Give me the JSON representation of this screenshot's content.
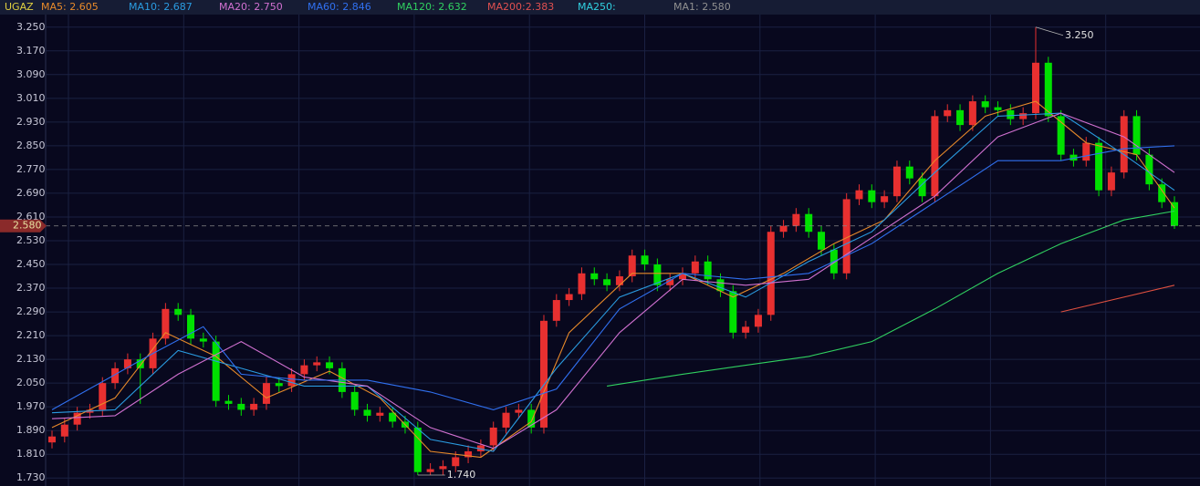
{
  "chart_data": {
    "type": "candlestick",
    "symbol": "UGAZ",
    "up_color": "#e83030",
    "down_color": "#00e000",
    "indicator_labels": [
      {
        "text": "MA5: 2.605",
        "color": "#e88a2a"
      },
      {
        "text": "MA10: 2.687",
        "color": "#2a9be0"
      },
      {
        "text": "MA20: 2.750",
        "color": "#d070d0"
      },
      {
        "text": "MA60: 2.846",
        "color": "#3070f0"
      },
      {
        "text": "MA120: 2.632",
        "color": "#30d060"
      },
      {
        "text": "MA200:2.383",
        "color": "#e05050"
      },
      {
        "text": "MA250:",
        "color": "#30d0e0"
      },
      {
        "text": "MA1: 2.580",
        "color": "#909090"
      }
    ],
    "open": [
      1.85,
      1.87,
      1.91,
      1.95,
      1.96,
      2.05,
      2.1,
      2.13,
      2.1,
      2.2,
      2.3,
      2.28,
      2.2,
      2.19,
      1.99,
      1.98,
      1.96,
      1.98,
      2.05,
      2.04,
      2.08,
      2.11,
      2.12,
      2.1,
      2.02,
      1.96,
      1.94,
      1.95,
      1.92,
      1.9,
      1.75,
      1.76,
      1.77,
      1.8,
      1.82,
      1.84,
      1.9,
      1.95,
      1.96,
      1.9,
      2.26,
      2.33,
      2.35,
      2.42,
      2.4,
      2.38,
      2.41,
      2.48,
      2.45,
      2.38,
      2.4,
      2.42,
      2.46,
      2.4,
      2.36,
      2.22,
      2.24,
      2.28,
      2.56,
      2.58,
      2.62,
      2.56,
      2.5,
      2.42,
      2.67,
      2.7,
      2.66,
      2.68,
      2.78,
      2.74,
      2.68,
      2.95,
      2.97,
      2.92,
      3.0,
      2.98,
      2.97,
      2.94,
      2.96,
      3.13,
      2.95,
      2.82,
      2.8,
      2.86,
      2.7,
      2.76,
      2.95,
      2.82,
      2.72,
      2.66
    ],
    "high": [
      1.89,
      1.93,
      1.97,
      1.98,
      2.07,
      2.12,
      2.15,
      2.15,
      2.22,
      2.32,
      2.32,
      2.3,
      2.22,
      2.21,
      2.01,
      2.0,
      2.0,
      2.07,
      2.07,
      2.1,
      2.13,
      2.14,
      2.14,
      2.12,
      2.04,
      1.98,
      1.97,
      1.97,
      1.94,
      1.92,
      1.78,
      1.79,
      1.82,
      1.84,
      1.86,
      1.92,
      1.97,
      1.98,
      1.98,
      2.28,
      2.35,
      2.37,
      2.44,
      2.44,
      2.42,
      2.43,
      2.5,
      2.5,
      2.47,
      2.42,
      2.44,
      2.48,
      2.48,
      2.42,
      2.38,
      2.26,
      2.3,
      2.58,
      2.6,
      2.64,
      2.64,
      2.58,
      2.52,
      2.69,
      2.72,
      2.72,
      2.7,
      2.8,
      2.8,
      2.76,
      2.97,
      2.99,
      2.99,
      3.02,
      3.02,
      3.0,
      2.99,
      2.98,
      3.25,
      3.15,
      2.97,
      2.84,
      2.88,
      2.88,
      2.78,
      2.97,
      2.97,
      2.84,
      2.74,
      2.68
    ],
    "low": [
      1.83,
      1.85,
      1.89,
      1.93,
      1.94,
      2.03,
      2.08,
      1.98,
      2.08,
      2.18,
      2.26,
      2.18,
      2.17,
      1.97,
      1.96,
      1.94,
      1.94,
      1.96,
      2.02,
      2.02,
      2.06,
      2.09,
      2.08,
      2.0,
      1.94,
      1.92,
      1.92,
      1.9,
      1.88,
      1.74,
      1.74,
      1.74,
      1.75,
      1.78,
      1.8,
      1.82,
      1.88,
      1.93,
      1.88,
      1.88,
      2.24,
      2.31,
      2.33,
      2.38,
      2.36,
      2.36,
      2.39,
      2.43,
      2.36,
      2.36,
      2.38,
      2.4,
      2.38,
      2.34,
      2.2,
      2.2,
      2.22,
      2.26,
      2.54,
      2.56,
      2.54,
      2.48,
      2.4,
      2.4,
      2.65,
      2.64,
      2.64,
      2.66,
      2.72,
      2.66,
      2.66,
      2.93,
      2.9,
      2.9,
      2.96,
      2.95,
      2.92,
      2.92,
      2.94,
      2.93,
      2.8,
      2.78,
      2.78,
      2.68,
      2.68,
      2.74,
      2.8,
      2.7,
      2.64,
      2.57
    ],
    "close": [
      1.87,
      1.91,
      1.95,
      1.96,
      2.05,
      2.1,
      2.13,
      2.1,
      2.2,
      2.3,
      2.28,
      2.2,
      2.19,
      1.99,
      1.98,
      1.96,
      1.98,
      2.05,
      2.04,
      2.08,
      2.11,
      2.12,
      2.1,
      2.02,
      1.96,
      1.94,
      1.95,
      1.92,
      1.9,
      1.75,
      1.76,
      1.77,
      1.8,
      1.82,
      1.84,
      1.9,
      1.95,
      1.96,
      1.9,
      2.26,
      2.33,
      2.35,
      2.42,
      2.4,
      2.38,
      2.41,
      2.48,
      2.45,
      2.38,
      2.4,
      2.42,
      2.46,
      2.4,
      2.36,
      2.22,
      2.24,
      2.28,
      2.56,
      2.58,
      2.62,
      2.56,
      2.5,
      2.42,
      2.67,
      2.7,
      2.66,
      2.68,
      2.78,
      2.74,
      2.68,
      2.95,
      2.97,
      2.92,
      3.0,
      2.98,
      2.97,
      2.94,
      2.96,
      3.13,
      2.95,
      2.82,
      2.8,
      2.86,
      2.7,
      2.76,
      2.95,
      2.82,
      2.72,
      2.66,
      2.58
    ],
    "series": [
      {
        "color": "#e88a2a",
        "x": [
          0,
          5,
          9,
          13,
          17,
          22,
          26,
          30,
          34,
          38,
          41,
          46,
          50,
          54,
          58,
          62,
          66,
          70,
          74,
          78,
          82,
          86,
          89
        ],
        "values": [
          1.9,
          2.0,
          2.22,
          2.14,
          2.0,
          2.09,
          2.0,
          1.82,
          1.8,
          1.92,
          2.22,
          2.42,
          2.42,
          2.34,
          2.42,
          2.52,
          2.6,
          2.8,
          2.95,
          3.0,
          2.86,
          2.82,
          2.64
        ]
      },
      {
        "color": "#2a9be0",
        "x": [
          0,
          5,
          10,
          15,
          20,
          25,
          30,
          35,
          40,
          45,
          50,
          55,
          60,
          65,
          70,
          75,
          80,
          85,
          89
        ],
        "values": [
          1.95,
          1.96,
          2.16,
          2.1,
          2.04,
          2.04,
          1.86,
          1.82,
          2.1,
          2.34,
          2.42,
          2.34,
          2.46,
          2.56,
          2.76,
          2.95,
          2.96,
          2.82,
          2.7
        ]
      },
      {
        "color": "#d070d0",
        "x": [
          0,
          5,
          10,
          15,
          20,
          25,
          30,
          35,
          40,
          45,
          50,
          55,
          60,
          65,
          70,
          75,
          80,
          85,
          89
        ],
        "values": [
          1.93,
          1.94,
          2.08,
          2.19,
          2.07,
          2.04,
          1.9,
          1.83,
          1.96,
          2.22,
          2.4,
          2.38,
          2.4,
          2.54,
          2.68,
          2.88,
          2.96,
          2.88,
          2.76
        ]
      },
      {
        "color": "#3070f0",
        "x": [
          0,
          8,
          12,
          15,
          20,
          25,
          30,
          35,
          40,
          45,
          50,
          55,
          60,
          65,
          70,
          75,
          80,
          85,
          89
        ],
        "values": [
          1.96,
          2.15,
          2.24,
          2.08,
          2.06,
          2.06,
          2.02,
          1.96,
          2.03,
          2.3,
          2.42,
          2.4,
          2.42,
          2.52,
          2.66,
          2.8,
          2.8,
          2.84,
          2.85
        ]
      },
      {
        "color": "#30d060",
        "x": [
          44,
          50,
          55,
          60,
          65,
          70,
          75,
          80,
          85,
          89
        ],
        "values": [
          2.04,
          2.08,
          2.11,
          2.14,
          2.19,
          2.3,
          2.42,
          2.52,
          2.6,
          2.63
        ]
      },
      {
        "color": "#e05040",
        "x": [
          80,
          89
        ],
        "values": [
          2.29,
          2.38
        ]
      }
    ],
    "annotations": [
      {
        "text": "3.250",
        "x": 78,
        "y": 3.25
      },
      {
        "text": "1.740",
        "x": 29,
        "y": 1.74
      }
    ],
    "last_price": {
      "value": 2.58,
      "label": "2.580"
    },
    "xlim": [
      0,
      89
    ],
    "ylim": [
      1.7,
      3.28
    ],
    "yticks": [
      {
        "value": 1.73,
        "label": "1.730"
      },
      {
        "value": 1.81,
        "label": "1.810"
      },
      {
        "value": 1.89,
        "label": "1.890"
      },
      {
        "value": 1.97,
        "label": "1.970"
      },
      {
        "value": 2.05,
        "label": "2.050"
      },
      {
        "value": 2.13,
        "label": "2.130"
      },
      {
        "value": 2.21,
        "label": "2.210"
      },
      {
        "value": 2.29,
        "label": "2.290"
      },
      {
        "value": 2.37,
        "label": "2.370"
      },
      {
        "value": 2.45,
        "label": "2.450"
      },
      {
        "value": 2.53,
        "label": "2.530"
      },
      {
        "value": 2.61,
        "label": "2.610"
      },
      {
        "value": 2.69,
        "label": "2.690"
      },
      {
        "value": 2.77,
        "label": "2.770"
      },
      {
        "value": 2.85,
        "label": "2.850"
      },
      {
        "value": 2.93,
        "label": "2.930"
      },
      {
        "value": 3.01,
        "label": "3.010"
      },
      {
        "value": 3.09,
        "label": "3.090"
      },
      {
        "value": 3.17,
        "label": "3.170"
      },
      {
        "value": 3.25,
        "label": "3.250"
      }
    ],
    "grid": true
  }
}
